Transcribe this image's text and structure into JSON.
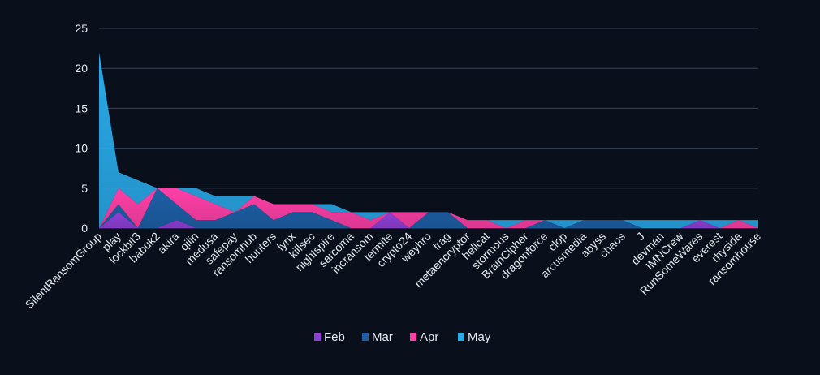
{
  "chart_data": {
    "type": "area",
    "stacked": true,
    "title": "",
    "xlabel": "",
    "ylabel": "",
    "ylim": [
      0,
      25
    ],
    "yticks": [
      0,
      5,
      10,
      15,
      20,
      25
    ],
    "grid": true,
    "legend_position": "bottom-center",
    "categories": [
      "SilentRansomGroup",
      "play",
      "lockbit3",
      "babuk2",
      "akira",
      "qilin",
      "medusa",
      "safepay",
      "ransomhub",
      "hunters",
      "lynx",
      "killsec",
      "nightspire",
      "sarcoma",
      "incransom",
      "termite",
      "crypto24",
      "weyhro",
      "frag",
      "metaencryptor",
      "hellcat",
      "stormous",
      "BrainCipher",
      "dragonforce",
      "clop",
      "arcusmedia",
      "abyss",
      "chaos",
      "J",
      "devman",
      "IMNCrew",
      "RunSomeWares",
      "everest",
      "rhysida",
      "ransomhouse"
    ],
    "series": [
      {
        "name": "Feb",
        "color": "#8f3fd6",
        "values": [
          0,
          2,
          0,
          0,
          1,
          0,
          0,
          0,
          0,
          0,
          0,
          0,
          0,
          0,
          0,
          2,
          0,
          0,
          0,
          0,
          0,
          0,
          0,
          0,
          0,
          0,
          0,
          0,
          0,
          0,
          0,
          1,
          0,
          0,
          0
        ]
      },
      {
        "name": "Mar",
        "color": "#1d5fa6",
        "values": [
          0,
          1,
          0,
          5,
          2,
          1,
          1,
          2,
          3,
          1,
          2,
          2,
          1,
          0,
          0,
          0,
          0,
          2,
          2,
          0,
          0,
          0,
          0,
          1,
          0,
          1,
          1,
          1,
          0,
          0,
          0,
          0,
          0,
          0,
          0
        ]
      },
      {
        "name": "Apr",
        "color": "#ff3fa6",
        "values": [
          0,
          2,
          3,
          0,
          2,
          3,
          2,
          0,
          1,
          2,
          1,
          1,
          1,
          2,
          1,
          0,
          2,
          0,
          0,
          1,
          1,
          0,
          1,
          0,
          0,
          0,
          0,
          0,
          0,
          0,
          0,
          0,
          0,
          1,
          0
        ]
      },
      {
        "name": "May",
        "color": "#29a9e8",
        "values": [
          22,
          2,
          3,
          0,
          0,
          1,
          1,
          2,
          0,
          0,
          0,
          0,
          1,
          0,
          1,
          0,
          0,
          0,
          0,
          0,
          0,
          1,
          0,
          0,
          1,
          0,
          0,
          0,
          1,
          1,
          1,
          0,
          1,
          0,
          1
        ]
      }
    ]
  }
}
